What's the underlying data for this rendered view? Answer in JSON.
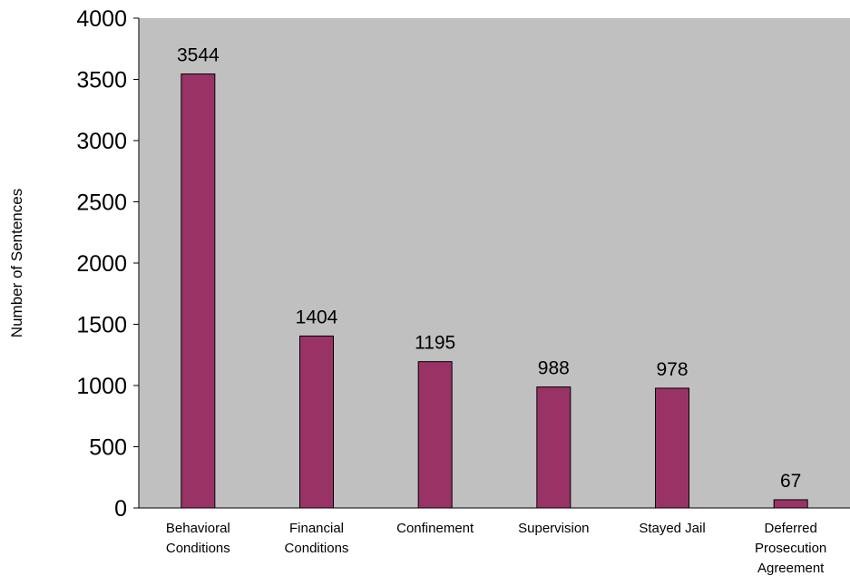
{
  "chart_data": {
    "type": "bar",
    "categories": [
      [
        "Behavioral",
        "Conditions"
      ],
      [
        "Financial",
        "Conditions"
      ],
      [
        "Confinement"
      ],
      [
        "Supervision"
      ],
      [
        "Stayed Jail"
      ],
      [
        "Deferred",
        "Prosecution",
        "Agreement"
      ]
    ],
    "values": [
      3544,
      1404,
      1195,
      988,
      978,
      67
    ],
    "ylabel": "Number of Sentences",
    "ylim": [
      0,
      4000
    ],
    "yticks": [
      0,
      500,
      1000,
      1500,
      2000,
      2500,
      3000,
      3500,
      4000
    ],
    "grid": false,
    "legend": "none",
    "colors": {
      "plot_background": "#c0c0c0",
      "bar_fill": "#993366",
      "bar_stroke": "#000000"
    }
  }
}
